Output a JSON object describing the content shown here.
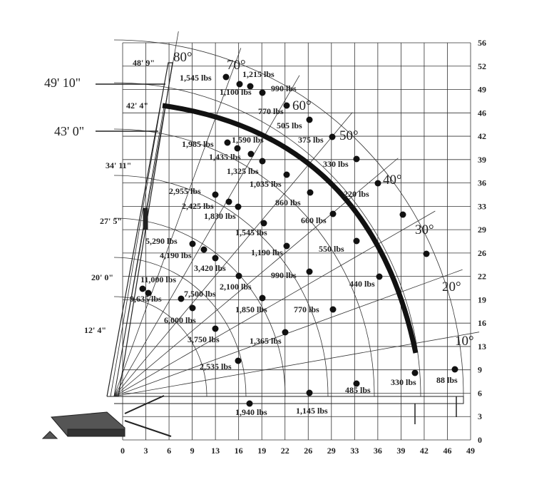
{
  "x_ticks": [
    0,
    3,
    6,
    9,
    13,
    16,
    19,
    22,
    26,
    29,
    33,
    36,
    39,
    42,
    46,
    49
  ],
  "y_ticks": [
    0,
    3,
    6,
    9,
    13,
    16,
    19,
    22,
    26,
    29,
    33,
    36,
    39,
    42,
    46,
    49,
    52,
    56
  ],
  "boom_lengths": [
    "48' 9\"",
    "42' 4\"",
    "34' 11\"",
    "27' 5\"",
    "20' 0\"",
    "12' 4\""
  ],
  "boom_callouts": [
    "49' 10\"",
    "43' 0\""
  ],
  "angles": [
    "80°",
    "70°",
    "60°",
    "50°",
    "40°",
    "30°",
    "20°",
    "10°"
  ],
  "loads": [
    "1,545 lbs",
    "1,215 lbs",
    "1,100 lbs",
    "990 lbs",
    "770 lbs",
    "505 lbs",
    "375 lbs",
    "1,985 lbs",
    "1,590 lbs",
    "1,435 lbs",
    "1,325 lbs",
    "330 lbs",
    "1,035 lbs",
    "2,955 lbs",
    "220 lbs",
    "860 lbs",
    "2,425 lbs",
    "1,830 lbs",
    "660 lbs",
    "1,545 lbs",
    "5,290 lbs",
    "550 lbs",
    "4,190 lbs",
    "1,190 lbs",
    "3,420 lbs",
    "11,000 lbs",
    "990 lbs",
    "440 lbs",
    "2,100 lbs",
    "7,500 lbs",
    "9,635 lbs",
    "1,850 lbs",
    "770 lbs",
    "6,000 lbs",
    "3,750 lbs",
    "1,365 lbs",
    "2,535 lbs",
    "330 lbs",
    "88 lbs",
    "485 lbs",
    "1,940 lbs",
    "1,145 lbs"
  ]
}
